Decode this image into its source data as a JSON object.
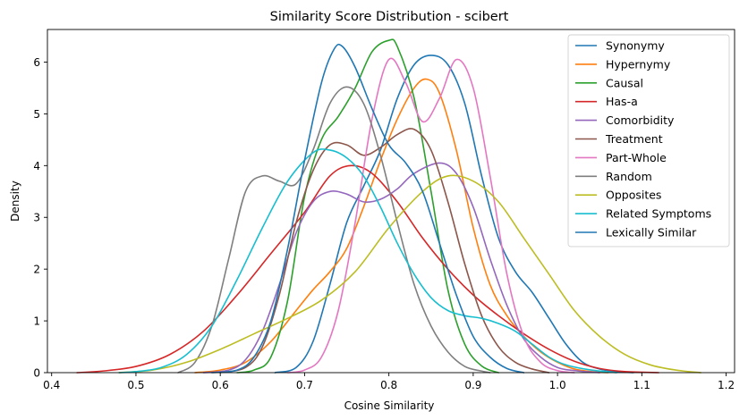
{
  "chart_data": {
    "type": "line",
    "title": "Similarity Score Distribution - scibert",
    "xlabel": "Cosine Similarity",
    "ylabel": "Density",
    "xlim": [
      0.395,
      1.21
    ],
    "ylim": [
      0,
      6.63
    ],
    "xticks": [
      0.4,
      0.5,
      0.6,
      0.7,
      0.8,
      0.9,
      1.0,
      1.1,
      1.2
    ],
    "yticks": [
      0,
      1,
      2,
      3,
      4,
      5,
      6
    ],
    "grid": false,
    "legend_position": "top-right",
    "series": [
      {
        "name": "Synonymy",
        "color": "#1f77b4",
        "points": [
          [
            0.665,
            0
          ],
          [
            0.69,
            0.1
          ],
          [
            0.71,
            0.6
          ],
          [
            0.73,
            1.7
          ],
          [
            0.75,
            2.9
          ],
          [
            0.77,
            3.6
          ],
          [
            0.79,
            4.3
          ],
          [
            0.81,
            5.3
          ],
          [
            0.83,
            5.95
          ],
          [
            0.85,
            6.13
          ],
          [
            0.87,
            5.95
          ],
          [
            0.89,
            5.2
          ],
          [
            0.91,
            3.8
          ],
          [
            0.93,
            2.6
          ],
          [
            0.95,
            1.95
          ],
          [
            0.97,
            1.55
          ],
          [
            0.99,
            1.05
          ],
          [
            1.01,
            0.55
          ],
          [
            1.03,
            0.2
          ],
          [
            1.05,
            0.07
          ],
          [
            1.07,
            0.02
          ],
          [
            1.09,
            0
          ]
        ]
      },
      {
        "name": "Hypernymy",
        "color": "#ff7f0e",
        "points": [
          [
            0.57,
            0
          ],
          [
            0.6,
            0.05
          ],
          [
            0.63,
            0.2
          ],
          [
            0.66,
            0.6
          ],
          [
            0.69,
            1.2
          ],
          [
            0.71,
            1.6
          ],
          [
            0.73,
            1.95
          ],
          [
            0.75,
            2.4
          ],
          [
            0.77,
            3.2
          ],
          [
            0.79,
            4.1
          ],
          [
            0.81,
            4.9
          ],
          [
            0.83,
            5.5
          ],
          [
            0.845,
            5.67
          ],
          [
            0.86,
            5.4
          ],
          [
            0.88,
            4.3
          ],
          [
            0.9,
            2.8
          ],
          [
            0.92,
            1.7
          ],
          [
            0.94,
            1.1
          ],
          [
            0.96,
            0.7
          ],
          [
            0.98,
            0.4
          ],
          [
            1.0,
            0.2
          ],
          [
            1.02,
            0.07
          ],
          [
            1.04,
            0.02
          ],
          [
            1.06,
            0
          ]
        ]
      },
      {
        "name": "Causal",
        "color": "#2ca02c",
        "points": [
          [
            0.62,
            0
          ],
          [
            0.64,
            0.05
          ],
          [
            0.66,
            0.3
          ],
          [
            0.68,
            1.4
          ],
          [
            0.7,
            3.4
          ],
          [
            0.72,
            4.5
          ],
          [
            0.74,
            4.95
          ],
          [
            0.76,
            5.5
          ],
          [
            0.78,
            6.2
          ],
          [
            0.8,
            6.42
          ],
          [
            0.81,
            6.3
          ],
          [
            0.83,
            5.3
          ],
          [
            0.85,
            3.5
          ],
          [
            0.87,
            1.6
          ],
          [
            0.89,
            0.55
          ],
          [
            0.91,
            0.13
          ],
          [
            0.93,
            0
          ]
        ]
      },
      {
        "name": "Has-a",
        "color": "#d62728",
        "points": [
          [
            0.43,
            0
          ],
          [
            0.46,
            0.03
          ],
          [
            0.5,
            0.12
          ],
          [
            0.54,
            0.35
          ],
          [
            0.58,
            0.8
          ],
          [
            0.62,
            1.5
          ],
          [
            0.66,
            2.3
          ],
          [
            0.7,
            3.1
          ],
          [
            0.73,
            3.8
          ],
          [
            0.755,
            4.0
          ],
          [
            0.78,
            3.85
          ],
          [
            0.81,
            3.3
          ],
          [
            0.84,
            2.6
          ],
          [
            0.87,
            2.0
          ],
          [
            0.9,
            1.5
          ],
          [
            0.93,
            1.1
          ],
          [
            0.96,
            0.75
          ],
          [
            0.99,
            0.45
          ],
          [
            1.02,
            0.22
          ],
          [
            1.05,
            0.08
          ],
          [
            1.08,
            0.02
          ],
          [
            1.12,
            0
          ]
        ]
      },
      {
        "name": "Comorbidity",
        "color": "#9467bd",
        "points": [
          [
            0.58,
            0
          ],
          [
            0.61,
            0.05
          ],
          [
            0.63,
            0.25
          ],
          [
            0.65,
            0.8
          ],
          [
            0.67,
            1.7
          ],
          [
            0.69,
            2.7
          ],
          [
            0.71,
            3.3
          ],
          [
            0.73,
            3.5
          ],
          [
            0.75,
            3.45
          ],
          [
            0.77,
            3.3
          ],
          [
            0.79,
            3.35
          ],
          [
            0.81,
            3.55
          ],
          [
            0.83,
            3.85
          ],
          [
            0.86,
            4.05
          ],
          [
            0.88,
            3.85
          ],
          [
            0.9,
            3.2
          ],
          [
            0.92,
            2.2
          ],
          [
            0.94,
            1.3
          ],
          [
            0.96,
            0.65
          ],
          [
            0.98,
            0.3
          ],
          [
            1.0,
            0.1
          ],
          [
            1.02,
            0.04
          ],
          [
            1.05,
            0
          ]
        ]
      },
      {
        "name": "Treatment",
        "color": "#8c564b",
        "points": [
          [
            0.6,
            0
          ],
          [
            0.63,
            0.1
          ],
          [
            0.65,
            0.5
          ],
          [
            0.67,
            1.5
          ],
          [
            0.69,
            2.9
          ],
          [
            0.71,
            3.9
          ],
          [
            0.73,
            4.4
          ],
          [
            0.75,
            4.4
          ],
          [
            0.77,
            4.2
          ],
          [
            0.79,
            4.35
          ],
          [
            0.81,
            4.6
          ],
          [
            0.83,
            4.7
          ],
          [
            0.85,
            4.3
          ],
          [
            0.87,
            3.3
          ],
          [
            0.89,
            2.1
          ],
          [
            0.91,
            1.1
          ],
          [
            0.93,
            0.5
          ],
          [
            0.95,
            0.2
          ],
          [
            0.97,
            0.07
          ],
          [
            0.99,
            0
          ]
        ]
      },
      {
        "name": "Part-Whole",
        "color": "#e377c2",
        "points": [
          [
            0.68,
            0
          ],
          [
            0.7,
            0.05
          ],
          [
            0.72,
            0.3
          ],
          [
            0.74,
            1.2
          ],
          [
            0.76,
            2.9
          ],
          [
            0.78,
            4.9
          ],
          [
            0.8,
            6.05
          ],
          [
            0.82,
            5.6
          ],
          [
            0.84,
            4.85
          ],
          [
            0.86,
            5.3
          ],
          [
            0.88,
            6.05
          ],
          [
            0.9,
            5.5
          ],
          [
            0.92,
            3.8
          ],
          [
            0.94,
            1.9
          ],
          [
            0.96,
            0.7
          ],
          [
            0.98,
            0.2
          ],
          [
            1.0,
            0.04
          ],
          [
            1.02,
            0
          ]
        ]
      },
      {
        "name": "Random",
        "color": "#7f7f7f",
        "points": [
          [
            0.55,
            0
          ],
          [
            0.57,
            0.2
          ],
          [
            0.59,
            0.9
          ],
          [
            0.61,
            2.2
          ],
          [
            0.63,
            3.5
          ],
          [
            0.65,
            3.8
          ],
          [
            0.67,
            3.7
          ],
          [
            0.69,
            3.65
          ],
          [
            0.71,
            4.3
          ],
          [
            0.73,
            5.2
          ],
          [
            0.75,
            5.52
          ],
          [
            0.77,
            5.2
          ],
          [
            0.79,
            4.2
          ],
          [
            0.81,
            2.9
          ],
          [
            0.83,
            1.7
          ],
          [
            0.85,
            0.9
          ],
          [
            0.87,
            0.4
          ],
          [
            0.89,
            0.12
          ],
          [
            0.91,
            0.03
          ],
          [
            0.92,
            0
          ]
        ]
      },
      {
        "name": "Opposites",
        "color": "#bcbd22",
        "points": [
          [
            0.48,
            0
          ],
          [
            0.52,
            0.05
          ],
          [
            0.56,
            0.2
          ],
          [
            0.6,
            0.45
          ],
          [
            0.64,
            0.75
          ],
          [
            0.68,
            1.05
          ],
          [
            0.72,
            1.4
          ],
          [
            0.76,
            1.95
          ],
          [
            0.8,
            2.8
          ],
          [
            0.84,
            3.5
          ],
          [
            0.87,
            3.8
          ],
          [
            0.9,
            3.7
          ],
          [
            0.93,
            3.3
          ],
          [
            0.96,
            2.6
          ],
          [
            0.99,
            1.9
          ],
          [
            1.02,
            1.2
          ],
          [
            1.05,
            0.7
          ],
          [
            1.08,
            0.35
          ],
          [
            1.11,
            0.15
          ],
          [
            1.14,
            0.05
          ],
          [
            1.17,
            0
          ]
        ]
      },
      {
        "name": "Related Symptoms",
        "color": "#17becf",
        "points": [
          [
            0.48,
            0
          ],
          [
            0.5,
            0.02
          ],
          [
            0.53,
            0.1
          ],
          [
            0.56,
            0.35
          ],
          [
            0.59,
            0.9
          ],
          [
            0.62,
            1.8
          ],
          [
            0.65,
            2.8
          ],
          [
            0.68,
            3.7
          ],
          [
            0.71,
            4.25
          ],
          [
            0.73,
            4.3
          ],
          [
            0.75,
            4.15
          ],
          [
            0.77,
            3.8
          ],
          [
            0.79,
            3.2
          ],
          [
            0.81,
            2.5
          ],
          [
            0.83,
            1.9
          ],
          [
            0.85,
            1.45
          ],
          [
            0.87,
            1.2
          ],
          [
            0.89,
            1.1
          ],
          [
            0.91,
            1.05
          ],
          [
            0.93,
            0.95
          ],
          [
            0.95,
            0.8
          ],
          [
            0.97,
            0.55
          ],
          [
            0.99,
            0.3
          ],
          [
            1.01,
            0.15
          ],
          [
            1.04,
            0.05
          ],
          [
            1.07,
            0
          ]
        ]
      },
      {
        "name": "Lexically Similar",
        "color": "#1f77b4",
        "points": [
          [
            0.59,
            0
          ],
          [
            0.62,
            0.05
          ],
          [
            0.64,
            0.3
          ],
          [
            0.66,
            1.0
          ],
          [
            0.68,
            2.4
          ],
          [
            0.7,
            4.1
          ],
          [
            0.72,
            5.6
          ],
          [
            0.735,
            6.25
          ],
          [
            0.745,
            6.3
          ],
          [
            0.76,
            5.9
          ],
          [
            0.78,
            5.1
          ],
          [
            0.8,
            4.4
          ],
          [
            0.82,
            4.05
          ],
          [
            0.84,
            3.5
          ],
          [
            0.86,
            2.5
          ],
          [
            0.88,
            1.5
          ],
          [
            0.9,
            0.7
          ],
          [
            0.92,
            0.3
          ],
          [
            0.94,
            0.08
          ],
          [
            0.96,
            0
          ]
        ]
      }
    ]
  }
}
